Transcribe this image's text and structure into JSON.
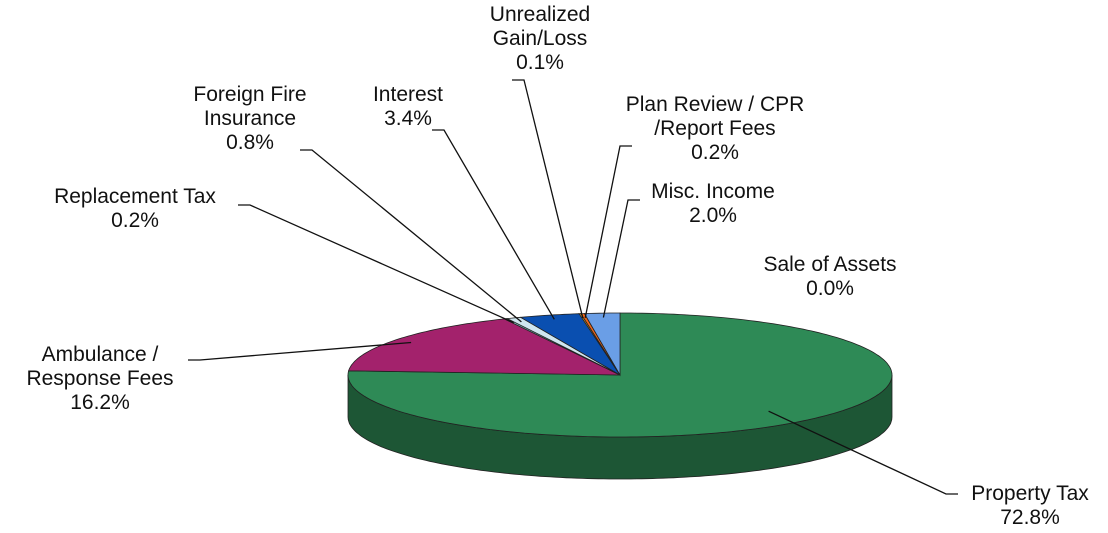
{
  "chart_data": {
    "type": "pie3d",
    "categories": [
      "Property Tax",
      "Ambulance / Response Fees",
      "Replacement Tax",
      "Foreign Fire Insurance",
      "Interest",
      "Unrealized Gain/Loss",
      "Plan Review / CPR /Report Fees",
      "Misc. Income",
      "Sale of Assets"
    ],
    "values": [
      72.8,
      16.2,
      0.2,
      0.8,
      3.4,
      0.1,
      0.2,
      2.0,
      0.0
    ],
    "value_labels": [
      "72.8%",
      "16.2%",
      "0.2%",
      "0.8%",
      "3.4%",
      "0.1%",
      "0.2%",
      "2.0%",
      "0.0%"
    ],
    "colors": [
      "#2e8a56",
      "#a3226c",
      "#8fd3d3",
      "#cfe6ef",
      "#0a4fb0",
      "#f2b72a",
      "#ef6417",
      "#6a9ee6",
      "#9a9a9a"
    ]
  }
}
